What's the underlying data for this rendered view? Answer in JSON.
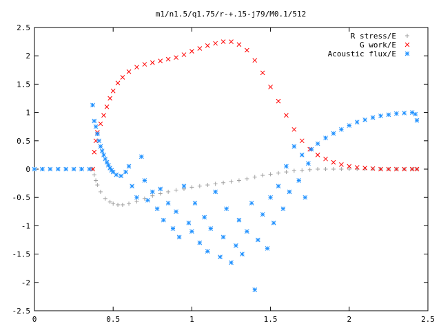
{
  "chart_data": {
    "type": "scatter",
    "title": "m1/n1.5/q1.75/r-+.15-j79/M0.1/512",
    "xlabel": "",
    "ylabel": "",
    "xlim": [
      0,
      2.5
    ],
    "ylim": [
      -2.5,
      2.5
    ],
    "xticks": [
      "0",
      "0.5",
      "1",
      "1.5",
      "2",
      "2.5"
    ],
    "yticks": [
      "2.5",
      "2",
      "1.5",
      "1",
      "0.5",
      "0",
      "-0.5",
      "-1",
      "-1.5",
      "-2",
      "-2.5"
    ],
    "grid": false,
    "legend_position": "top-right",
    "series": [
      {
        "name": "R stress/E",
        "marker": "+",
        "color": "#a0a0a0",
        "points": [
          [
            0.37,
            0
          ],
          [
            0.38,
            -0.1
          ],
          [
            0.39,
            -0.2
          ],
          [
            0.4,
            -0.28
          ],
          [
            0.42,
            -0.4
          ],
          [
            0.45,
            -0.52
          ],
          [
            0.48,
            -0.58
          ],
          [
            0.5,
            -0.61
          ],
          [
            0.53,
            -0.63
          ],
          [
            0.56,
            -0.63
          ],
          [
            0.6,
            -0.61
          ],
          [
            0.65,
            -0.57
          ],
          [
            0.7,
            -0.52
          ],
          [
            0.75,
            -0.47
          ],
          [
            0.8,
            -0.43
          ],
          [
            0.85,
            -0.4
          ],
          [
            0.9,
            -0.37
          ],
          [
            0.95,
            -0.35
          ],
          [
            1.0,
            -0.32
          ],
          [
            1.05,
            -0.3
          ],
          [
            1.1,
            -0.28
          ],
          [
            1.15,
            -0.26
          ],
          [
            1.2,
            -0.24
          ],
          [
            1.25,
            -0.22
          ],
          [
            1.3,
            -0.2
          ],
          [
            1.35,
            -0.17
          ],
          [
            1.4,
            -0.14
          ],
          [
            1.45,
            -0.11
          ],
          [
            1.5,
            -0.09
          ],
          [
            1.55,
            -0.07
          ],
          [
            1.6,
            -0.05
          ],
          [
            1.65,
            -0.03
          ],
          [
            1.7,
            -0.02
          ],
          [
            1.75,
            -0.01
          ],
          [
            1.8,
            0
          ],
          [
            1.85,
            0
          ],
          [
            1.9,
            0
          ],
          [
            1.95,
            0
          ],
          [
            2.0,
            0
          ],
          [
            2.05,
            0
          ],
          [
            2.1,
            0
          ],
          [
            2.15,
            0
          ],
          [
            2.2,
            0
          ],
          [
            2.25,
            0
          ],
          [
            2.3,
            0
          ],
          [
            2.35,
            0
          ],
          [
            2.4,
            0
          ],
          [
            2.43,
            0
          ]
        ]
      },
      {
        "name": "G work/E",
        "marker": "x",
        "color": "#ff0000",
        "points": [
          [
            0.37,
            0
          ],
          [
            0.38,
            0.3
          ],
          [
            0.39,
            0.5
          ],
          [
            0.4,
            0.65
          ],
          [
            0.42,
            0.8
          ],
          [
            0.44,
            0.95
          ],
          [
            0.46,
            1.1
          ],
          [
            0.48,
            1.25
          ],
          [
            0.5,
            1.38
          ],
          [
            0.53,
            1.52
          ],
          [
            0.56,
            1.62
          ],
          [
            0.6,
            1.72
          ],
          [
            0.65,
            1.8
          ],
          [
            0.7,
            1.85
          ],
          [
            0.75,
            1.88
          ],
          [
            0.8,
            1.91
          ],
          [
            0.85,
            1.94
          ],
          [
            0.9,
            1.97
          ],
          [
            0.95,
            2.02
          ],
          [
            1.0,
            2.08
          ],
          [
            1.05,
            2.13
          ],
          [
            1.1,
            2.18
          ],
          [
            1.15,
            2.22
          ],
          [
            1.2,
            2.25
          ],
          [
            1.25,
            2.25
          ],
          [
            1.3,
            2.2
          ],
          [
            1.35,
            2.1
          ],
          [
            1.4,
            1.92
          ],
          [
            1.45,
            1.7
          ],
          [
            1.5,
            1.45
          ],
          [
            1.55,
            1.2
          ],
          [
            1.6,
            0.95
          ],
          [
            1.65,
            0.7
          ],
          [
            1.7,
            0.5
          ],
          [
            1.75,
            0.35
          ],
          [
            1.8,
            0.25
          ],
          [
            1.85,
            0.18
          ],
          [
            1.9,
            0.12
          ],
          [
            1.95,
            0.08
          ],
          [
            2.0,
            0.05
          ],
          [
            2.05,
            0.03
          ],
          [
            2.1,
            0.02
          ],
          [
            2.15,
            0.01
          ],
          [
            2.2,
            0
          ],
          [
            2.25,
            0
          ],
          [
            2.3,
            0
          ],
          [
            2.35,
            0
          ],
          [
            2.4,
            0
          ],
          [
            2.43,
            0
          ]
        ]
      },
      {
        "name": "Acoustic flux/E",
        "marker": "*",
        "color": "#1e90ff",
        "points": [
          [
            0.0,
            0
          ],
          [
            0.05,
            0
          ],
          [
            0.1,
            0
          ],
          [
            0.15,
            0
          ],
          [
            0.2,
            0
          ],
          [
            0.25,
            0
          ],
          [
            0.3,
            0
          ],
          [
            0.35,
            0
          ],
          [
            0.37,
            1.13
          ],
          [
            0.38,
            0.85
          ],
          [
            0.39,
            0.75
          ],
          [
            0.4,
            0.62
          ],
          [
            0.41,
            0.5
          ],
          [
            0.42,
            0.4
          ],
          [
            0.43,
            0.32
          ],
          [
            0.44,
            0.25
          ],
          [
            0.45,
            0.18
          ],
          [
            0.46,
            0.12
          ],
          [
            0.47,
            0.07
          ],
          [
            0.48,
            0.02
          ],
          [
            0.49,
            -0.02
          ],
          [
            0.5,
            -0.05
          ],
          [
            0.52,
            -0.1
          ],
          [
            0.55,
            -0.12
          ],
          [
            0.58,
            -0.05
          ],
          [
            0.6,
            0.05
          ],
          [
            0.62,
            -0.3
          ],
          [
            0.65,
            -0.5
          ],
          [
            0.68,
            0.22
          ],
          [
            0.7,
            -0.2
          ],
          [
            0.72,
            -0.55
          ],
          [
            0.75,
            -0.4
          ],
          [
            0.78,
            -0.7
          ],
          [
            0.8,
            -0.35
          ],
          [
            0.82,
            -0.9
          ],
          [
            0.85,
            -0.6
          ],
          [
            0.88,
            -1.05
          ],
          [
            0.9,
            -0.75
          ],
          [
            0.92,
            -1.2
          ],
          [
            0.95,
            -0.3
          ],
          [
            0.98,
            -0.95
          ],
          [
            1.0,
            -1.1
          ],
          [
            1.02,
            -0.6
          ],
          [
            1.05,
            -1.3
          ],
          [
            1.08,
            -0.85
          ],
          [
            1.1,
            -1.45
          ],
          [
            1.12,
            -1.05
          ],
          [
            1.15,
            -0.4
          ],
          [
            1.18,
            -1.55
          ],
          [
            1.2,
            -1.2
          ],
          [
            1.22,
            -0.7
          ],
          [
            1.25,
            -1.65
          ],
          [
            1.28,
            -1.35
          ],
          [
            1.3,
            -0.9
          ],
          [
            1.32,
            -1.5
          ],
          [
            1.35,
            -1.1
          ],
          [
            1.38,
            -0.6
          ],
          [
            1.4,
            -2.13
          ],
          [
            1.42,
            -1.25
          ],
          [
            1.45,
            -0.8
          ],
          [
            1.48,
            -1.4
          ],
          [
            1.5,
            -0.5
          ],
          [
            1.52,
            -0.95
          ],
          [
            1.55,
            -0.3
          ],
          [
            1.58,
            -0.7
          ],
          [
            1.6,
            0.05
          ],
          [
            1.62,
            -0.4
          ],
          [
            1.65,
            0.4
          ],
          [
            1.68,
            -0.2
          ],
          [
            1.7,
            0.25
          ],
          [
            1.72,
            -0.5
          ],
          [
            1.74,
            0.1
          ],
          [
            1.76,
            0.35
          ],
          [
            1.8,
            0.45
          ],
          [
            1.85,
            0.55
          ],
          [
            1.9,
            0.63
          ],
          [
            1.95,
            0.7
          ],
          [
            2.0,
            0.77
          ],
          [
            2.05,
            0.83
          ],
          [
            2.1,
            0.87
          ],
          [
            2.15,
            0.91
          ],
          [
            2.2,
            0.94
          ],
          [
            2.25,
            0.96
          ],
          [
            2.3,
            0.98
          ],
          [
            2.35,
            0.99
          ],
          [
            2.4,
            1.0
          ],
          [
            2.42,
            0.97
          ],
          [
            2.43,
            0.86
          ]
        ]
      }
    ]
  }
}
